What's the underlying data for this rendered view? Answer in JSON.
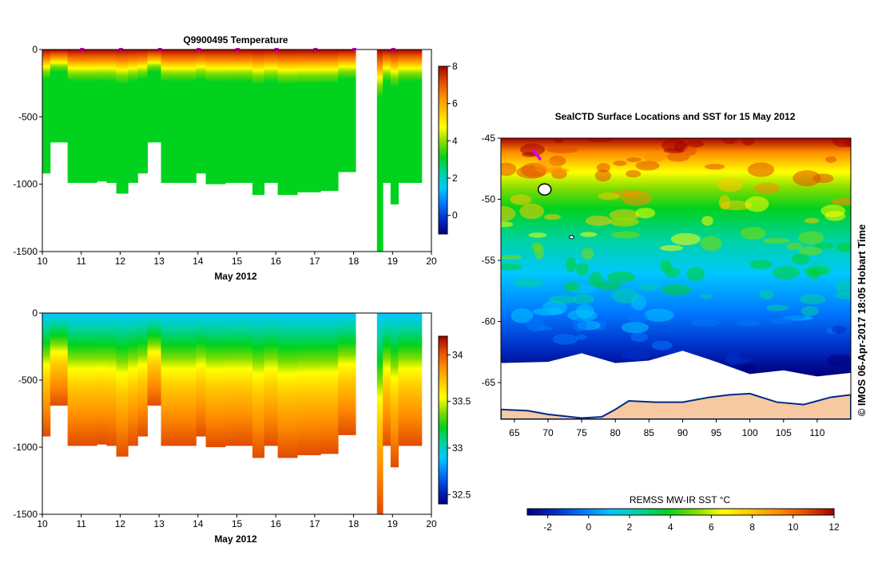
{
  "colors": {
    "ramp": [
      "#00007f",
      "#0030c8",
      "#0078ff",
      "#00c8ff",
      "#00d2a0",
      "#00d21e",
      "#7fdc00",
      "#ffff00",
      "#ffc800",
      "#ff8c00",
      "#e14b00",
      "#a50000"
    ],
    "land": "#f7c9a0",
    "ice": "#ffffff",
    "marker": "#e000e0"
  },
  "chart_data": [
    {
      "id": "temperature",
      "type": "heatmap",
      "title": "Q9900495  Temperature",
      "xlabel": "May 2012",
      "ylabel": "",
      "xlim": [
        10,
        20
      ],
      "ylim": [
        -1500,
        0
      ],
      "xticks": [
        "10",
        "11",
        "12",
        "13",
        "14",
        "15",
        "16",
        "17",
        "18",
        "19",
        "20"
      ],
      "yticks": [
        "0",
        "-500",
        "-1000",
        "-1500"
      ],
      "colorbar": {
        "range": [
          -1,
          8
        ],
        "ticks": [
          "8",
          "6",
          "4",
          "2",
          "0"
        ]
      },
      "surface_markers_days": [
        11,
        12,
        13,
        14,
        15,
        16,
        17,
        18,
        19
      ],
      "profiles": [
        {
          "start": 10.0,
          "end": 10.2,
          "depth": 920
        },
        {
          "start": 10.2,
          "end": 10.65,
          "depth": 690
        },
        {
          "start": 10.65,
          "end": 11.15,
          "depth": 990
        },
        {
          "start": 11.15,
          "end": 11.4,
          "depth": 990
        },
        {
          "start": 11.4,
          "end": 11.65,
          "depth": 980
        },
        {
          "start": 11.65,
          "end": 11.9,
          "depth": 990
        },
        {
          "start": 11.9,
          "end": 12.2,
          "depth": 1070
        },
        {
          "start": 12.2,
          "end": 12.45,
          "depth": 990
        },
        {
          "start": 12.45,
          "end": 12.7,
          "depth": 920
        },
        {
          "start": 12.7,
          "end": 13.05,
          "depth": 690
        },
        {
          "start": 13.05,
          "end": 13.5,
          "depth": 990
        },
        {
          "start": 13.5,
          "end": 13.95,
          "depth": 990
        },
        {
          "start": 13.95,
          "end": 14.2,
          "depth": 920
        },
        {
          "start": 14.2,
          "end": 14.7,
          "depth": 1000
        },
        {
          "start": 14.7,
          "end": 15.4,
          "depth": 990
        },
        {
          "start": 15.4,
          "end": 15.7,
          "depth": 1080
        },
        {
          "start": 15.7,
          "end": 16.05,
          "depth": 990
        },
        {
          "start": 16.05,
          "end": 16.55,
          "depth": 1080
        },
        {
          "start": 16.55,
          "end": 17.15,
          "depth": 1060
        },
        {
          "start": 17.15,
          "end": 17.6,
          "depth": 1050
        },
        {
          "start": 17.6,
          "end": 18.05,
          "depth": 910
        },
        {
          "start": 18.6,
          "end": 18.75,
          "depth": 1500
        },
        {
          "start": 18.75,
          "end": 18.95,
          "depth": 990
        },
        {
          "start": 18.95,
          "end": 19.15,
          "depth": 1150
        },
        {
          "start": 19.15,
          "end": 19.75,
          "depth": 990
        }
      ]
    },
    {
      "id": "salinity",
      "type": "heatmap",
      "title": "",
      "xlabel": "May 2012",
      "ylabel": "",
      "xlim": [
        10,
        20
      ],
      "ylim": [
        -1500,
        0
      ],
      "xticks": [
        "10",
        "11",
        "12",
        "13",
        "14",
        "15",
        "16",
        "17",
        "18",
        "19",
        "20"
      ],
      "yticks": [
        "0",
        "-500",
        "-1000",
        "-1500"
      ],
      "colorbar": {
        "range": [
          32.4,
          34.2
        ],
        "ticks": [
          "34",
          "33.5",
          "33",
          "32.5"
        ]
      },
      "profiles": [
        {
          "start": 10.0,
          "end": 10.2,
          "depth": 920
        },
        {
          "start": 10.2,
          "end": 10.65,
          "depth": 690
        },
        {
          "start": 10.65,
          "end": 11.15,
          "depth": 990
        },
        {
          "start": 11.15,
          "end": 11.4,
          "depth": 990
        },
        {
          "start": 11.4,
          "end": 11.65,
          "depth": 980
        },
        {
          "start": 11.65,
          "end": 11.9,
          "depth": 990
        },
        {
          "start": 11.9,
          "end": 12.2,
          "depth": 1070
        },
        {
          "start": 12.2,
          "end": 12.45,
          "depth": 990
        },
        {
          "start": 12.45,
          "end": 12.7,
          "depth": 920
        },
        {
          "start": 12.7,
          "end": 13.05,
          "depth": 690
        },
        {
          "start": 13.05,
          "end": 13.5,
          "depth": 990
        },
        {
          "start": 13.5,
          "end": 13.95,
          "depth": 990
        },
        {
          "start": 13.95,
          "end": 14.2,
          "depth": 920
        },
        {
          "start": 14.2,
          "end": 14.7,
          "depth": 1000
        },
        {
          "start": 14.7,
          "end": 15.4,
          "depth": 990
        },
        {
          "start": 15.4,
          "end": 15.7,
          "depth": 1080
        },
        {
          "start": 15.7,
          "end": 16.05,
          "depth": 990
        },
        {
          "start": 16.05,
          "end": 16.55,
          "depth": 1080
        },
        {
          "start": 16.55,
          "end": 17.15,
          "depth": 1060
        },
        {
          "start": 17.15,
          "end": 17.6,
          "depth": 1050
        },
        {
          "start": 17.6,
          "end": 18.05,
          "depth": 910
        },
        {
          "start": 18.6,
          "end": 18.75,
          "depth": 1500
        },
        {
          "start": 18.75,
          "end": 18.95,
          "depth": 990
        },
        {
          "start": 18.95,
          "end": 19.15,
          "depth": 1150
        },
        {
          "start": 19.15,
          "end": 19.75,
          "depth": 990
        }
      ]
    },
    {
      "id": "sst-map",
      "type": "heatmap",
      "title": "SealCTD Surface Locations and SST for 15 May 2012",
      "xlim": [
        63,
        115
      ],
      "ylim": [
        -68,
        -45
      ],
      "xticks": [
        "65",
        "70",
        "75",
        "80",
        "85",
        "90",
        "95",
        "100",
        "105",
        "110"
      ],
      "yticks": [
        "-45",
        "-50",
        "-55",
        "-60",
        "-65"
      ],
      "colorbar": {
        "label": "REMSS MW-IR SST °C",
        "range": [
          -3,
          12
        ],
        "ticks": [
          "-2",
          "0",
          "2",
          "4",
          "6",
          "8",
          "10",
          "12"
        ]
      },
      "track": [
        [
          67.8,
          -46.0
        ],
        [
          68.3,
          -46.3
        ],
        [
          68.8,
          -46.7
        ]
      ],
      "credit": "© IMOS 06-Apr-2017 18:05 Hobart Time"
    }
  ]
}
